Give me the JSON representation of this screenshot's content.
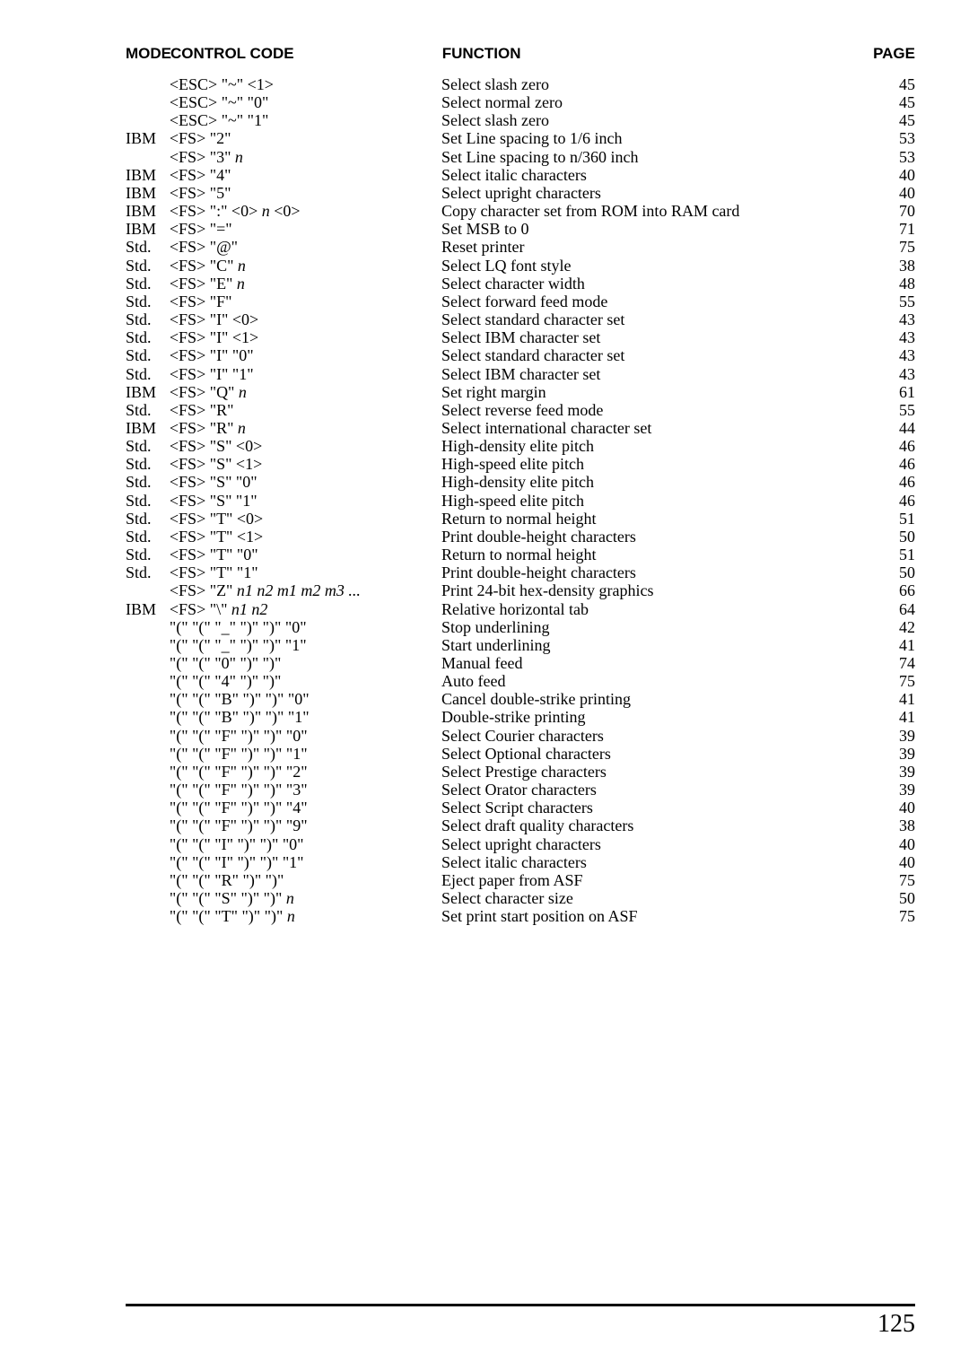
{
  "headers": {
    "mode": "MODE",
    "code": "CONTROL CODE",
    "func": "FUNCTION",
    "page": "PAGE"
  },
  "pageNumber": "125",
  "rows": [
    {
      "mode": "",
      "code": "<ESC> \"~\" <1>",
      "func": "Select slash zero",
      "page": "45"
    },
    {
      "mode": "",
      "code": "<ESC> \"~\" \"0\"",
      "func": "Select normal zero",
      "page": "45"
    },
    {
      "mode": "",
      "code": "<ESC> \"~\" \"1\"",
      "func": "Select slash zero",
      "page": "45"
    },
    {
      "mode": "IBM",
      "code": "<FS> \"2\"",
      "func": "Set Line spacing to 1/6 inch",
      "page": "53"
    },
    {
      "mode": "",
      "code": "<FS> \"3\" ",
      "codeItal": "n",
      "func": "Set Line spacing to  n/360 inch",
      "page": "53"
    },
    {
      "mode": "IBM",
      "code": "<FS> \"4\"",
      "func": "Select italic characters",
      "page": "40"
    },
    {
      "mode": "IBM",
      "code": "<FS> \"5\"",
      "func": "Select upright characters",
      "page": "40"
    },
    {
      "mode": "IBM",
      "code": "<FS> \":\" <0> ",
      "codeItal": "n",
      "codeTail": " <0>",
      "func": "Copy character set from ROM into RAM card",
      "page": "70"
    },
    {
      "mode": "IBM",
      "code": "<FS> \"=\"",
      "func": "Set MSB to 0",
      "page": "71"
    },
    {
      "mode": "Std.",
      "code": "<FS> \"@\"",
      "func": "Reset printer",
      "page": "75"
    },
    {
      "mode": "Std.",
      "code": "<FS> \"C\" ",
      "codeItal": "n",
      "func": "Select LQ font style",
      "page": "38"
    },
    {
      "mode": "Std.",
      "code": "<FS> \"E\" ",
      "codeItal": "n",
      "func": "Select character width",
      "page": "48"
    },
    {
      "mode": "Std.",
      "code": "<FS> \"F\"",
      "func": "Select forward feed mode",
      "page": "55"
    },
    {
      "mode": "Std.",
      "code": "<FS> \"I\" <0>",
      "func": "Select standard character set",
      "page": "43"
    },
    {
      "mode": "Std.",
      "code": "<FS> \"I\" <1>",
      "func": "Select IBM character set",
      "page": "43"
    },
    {
      "mode": "Std.",
      "code": "<FS> \"I\" \"0\"",
      "func": "Select standard character set",
      "page": "43"
    },
    {
      "mode": "Std.",
      "code": "<FS> \"I\" \"1\"",
      "func": "Select IBM character set",
      "page": "43"
    },
    {
      "mode": "IBM",
      "code": "<FS> \"Q\" ",
      "codeItal": "n",
      "func": "Set right margin",
      "page": "61"
    },
    {
      "mode": "Std.",
      "code": "<FS> \"R\"",
      "func": "Select reverse feed mode",
      "page": "55"
    },
    {
      "mode": "IBM",
      "code": "<FS> \"R\" ",
      "codeItal": "n",
      "func": "Select international character set",
      "page": "44"
    },
    {
      "mode": "Std.",
      "code": "<FS> \"S\" <0>",
      "func": "High-density elite pitch",
      "page": "46"
    },
    {
      "mode": "Std.",
      "code": "<FS> \"S\" <1>",
      "func": "High-speed elite pitch",
      "page": "46"
    },
    {
      "mode": "Std.",
      "code": "<FS> \"S\" \"0\"",
      "func": "High-density elite pitch",
      "page": "46"
    },
    {
      "mode": "Std.",
      "code": "<FS> \"S\" \"1\"",
      "func": "High-speed elite pitch",
      "page": "46"
    },
    {
      "mode": "Std.",
      "code": "<FS> \"T\" <0>",
      "func": "Return to normal height",
      "page": "51"
    },
    {
      "mode": "Std.",
      "code": "<FS> \"T\" <1>",
      "func": "Print double-height characters",
      "page": "50"
    },
    {
      "mode": "Std.",
      "code": "<FS> \"T\" \"0\"",
      "func": "Return to normal height",
      "page": "51"
    },
    {
      "mode": "Std.",
      "code": "<FS> \"T\" \"1\"",
      "func": "Print double-height characters",
      "page": "50"
    },
    {
      "mode": "",
      "code": "<FS> \"Z\" ",
      "codeItal": "n1 n2 m1 m2 m3 ...",
      "func": "Print 24-bit hex-density graphics",
      "page": "66"
    },
    {
      "mode": "IBM",
      "code": "<FS> \"\\\" ",
      "codeItal": "n1 n2",
      "func": "Relative horizontal tab",
      "page": "64"
    },
    {
      "mode": "",
      "code": "\"(\" \"(\" \"_\" \")\" \")\" \"0\"",
      "func": "Stop underlining",
      "page": "42"
    },
    {
      "mode": "",
      "code": "\"(\" \"(\" \"_\" \")\" \")\" \"1\"",
      "func": "Start underlining",
      "page": "41"
    },
    {
      "mode": "",
      "code": "\"(\" \"(\" \"0\" \")\" \")\"",
      "func": "Manual feed",
      "page": "74"
    },
    {
      "mode": "",
      "code": "\"(\" \"(\" \"4\" \")\" \")\"",
      "func": "Auto feed",
      "page": "75"
    },
    {
      "mode": "",
      "code": "\"(\" \"(\" \"B\" \")\" \")\" \"0\"",
      "func": "Cancel double-strike printing",
      "page": "41"
    },
    {
      "mode": "",
      "code": "\"(\" \"(\" \"B\" \")\" \")\" \"1\"",
      "func": "Double-strike printing",
      "page": "41"
    },
    {
      "mode": "",
      "code": "\"(\" \"(\" \"F\" \")\" \")\" \"0\"",
      "func": "Select Courier characters",
      "page": "39"
    },
    {
      "mode": "",
      "code": "\"(\" \"(\" \"F\" \")\" \")\" \"1\"",
      "func": "Select Optional characters",
      "page": "39"
    },
    {
      "mode": "",
      "code": "\"(\" \"(\" \"F\" \")\" \")\" \"2\"",
      "func": "Select Prestige characters",
      "page": "39"
    },
    {
      "mode": "",
      "code": "\"(\" \"(\" \"F\" \")\" \")\" \"3\"",
      "func": "Select Orator characters",
      "page": "39"
    },
    {
      "mode": "",
      "code": "\"(\" \"(\" \"F\" \")\" \")\" \"4\"",
      "func": "Select Script characters",
      "page": "40"
    },
    {
      "mode": "",
      "code": "\"(\" \"(\" \"F\" \")\" \")\" \"9\"",
      "func": "Select draft quality characters",
      "page": "38"
    },
    {
      "mode": "",
      "code": "\"(\" \"(\" \"I\" \")\" \")\" \"0\"",
      "func": "Select upright characters",
      "page": "40"
    },
    {
      "mode": "",
      "code": "\"(\" \"(\" \"I\" \")\" \")\" \"1\"",
      "func": "Select italic characters",
      "page": "40"
    },
    {
      "mode": "",
      "code": "\"(\" \"(\" \"R\" \")\" \")\"",
      "func": "Eject paper from ASF",
      "page": "75"
    },
    {
      "mode": "",
      "code": "\"(\" \"(\" \"S\" \")\" \")\" ",
      "codeItal": "n",
      "func": "Select character size",
      "page": "50"
    },
    {
      "mode": "",
      "code": "\"(\" \"(\" \"T\" \")\" \")\" ",
      "codeItal": "n",
      "func": "Set print start position on ASF",
      "page": "75"
    }
  ]
}
